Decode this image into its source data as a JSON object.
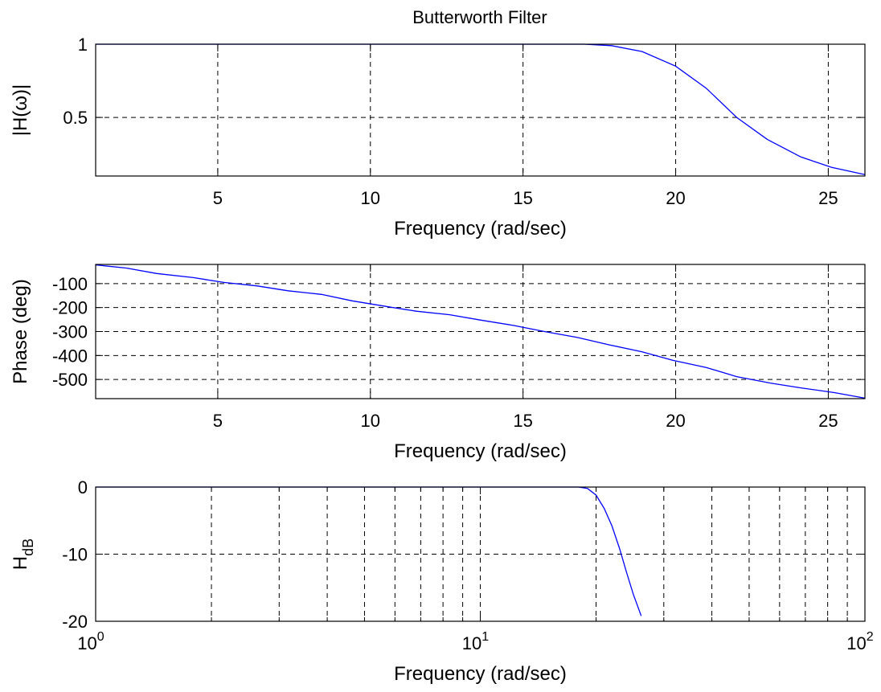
{
  "figure": {
    "title": "Butterworth Filter",
    "line_color": "#0000ff",
    "grid_color": "#000000",
    "background": "#ffffff"
  },
  "chart_data": [
    {
      "type": "line",
      "title": "Butterworth Filter",
      "xlabel": "Frequency (rad/sec)",
      "ylabel": "|H(ω)|",
      "xscale": "linear",
      "xlim": [
        1,
        26.2
      ],
      "ylim": [
        0.1,
        1
      ],
      "xticks": [
        5,
        10,
        15,
        20,
        25
      ],
      "yticks": [
        0.5,
        1
      ],
      "ytick_labels": [
        "0.5",
        "1"
      ],
      "grid": true,
      "grid_style": "dashed",
      "series": [
        {
          "color": "#0000ff",
          "x": [
            1,
            2,
            3,
            4,
            5,
            6,
            7,
            8,
            9,
            10,
            11,
            12,
            13,
            14,
            15,
            16,
            17,
            17.9,
            18.9,
            20,
            21,
            22,
            23,
            24.1,
            25.1,
            26.2
          ],
          "y": [
            1,
            1,
            1,
            1,
            1,
            1,
            1,
            1,
            1,
            1,
            1,
            1,
            1,
            1,
            1,
            1,
            1,
            0.99,
            0.95,
            0.85,
            0.7,
            0.5,
            0.35,
            0.23,
            0.16,
            0.11
          ]
        }
      ]
    },
    {
      "type": "line",
      "title": "",
      "xlabel": "Frequency (rad/sec)",
      "ylabel": "Phase (deg)",
      "xscale": "linear",
      "xlim": [
        1,
        26.2
      ],
      "ylim": [
        -580,
        -20
      ],
      "xticks": [
        5,
        10,
        15,
        20,
        25
      ],
      "yticks": [
        -500,
        -400,
        -300,
        -200,
        -100
      ],
      "ytick_labels": [
        "-500",
        "-400",
        "-300",
        "-200",
        "-100"
      ],
      "grid": true,
      "grid_style": "dashed",
      "series": [
        {
          "color": "#0000ff",
          "x": [
            1,
            2,
            3,
            4.2,
            5.2,
            6.3,
            7.3,
            8.4,
            9.4,
            10.5,
            11.5,
            12.6,
            13.6,
            14.7,
            15.7,
            16.8,
            17.8,
            18.9,
            19.9,
            21,
            22,
            23.1,
            24.1,
            25.2,
            26.2
          ],
          "y": [
            -22,
            -35,
            -58,
            -75,
            -95,
            -110,
            -130,
            -145,
            -172,
            -195,
            -215,
            -230,
            -252,
            -275,
            -300,
            -325,
            -355,
            -385,
            -420,
            -450,
            -488,
            -515,
            -535,
            -555,
            -578
          ]
        }
      ]
    },
    {
      "type": "line",
      "title": "",
      "xlabel": "Frequency (rad/sec)",
      "ylabel": "H",
      "ylabel_subscript": "dB",
      "xscale": "log",
      "xlim": [
        1,
        100
      ],
      "ylim": [
        -20,
        0
      ],
      "xticks": [
        1,
        10,
        100
      ],
      "xtick_base": "10",
      "xtick_exponents": [
        "0",
        "1",
        "2"
      ],
      "yticks": [
        -20,
        -10,
        0
      ],
      "ytick_labels": [
        "-20",
        "-10",
        "0"
      ],
      "grid": true,
      "grid_style": "dashed",
      "series": [
        {
          "color": "#0000ff",
          "x": [
            1,
            2,
            5,
            10,
            15,
            18,
            19,
            20,
            21,
            22,
            23,
            24,
            25,
            26.2
          ],
          "y": [
            0,
            0,
            0,
            0,
            0,
            0,
            -0.2,
            -1.2,
            -3.2,
            -5.8,
            -9.1,
            -12.7,
            -16.0,
            -19.2
          ]
        }
      ]
    }
  ]
}
